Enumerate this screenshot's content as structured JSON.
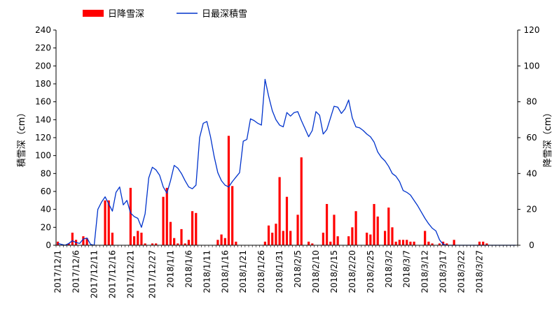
{
  "chart_data": {
    "type": "bar",
    "legend": {
      "placement": "top-left",
      "items": [
        "日降雪深",
        "日最深積雪"
      ]
    },
    "x": {
      "start": "2017-12-01",
      "end": "2018-03-31",
      "tick_labels": [
        "2017/12/1",
        "2017/12/6",
        "2017/12/11",
        "2017/12/16",
        "2017/12/21",
        "2017/12/27",
        "2018/1/1",
        "2018/1/6",
        "2018/1/11",
        "2018/1/16",
        "2018/1/21",
        "2018/1/26",
        "2018/1/31",
        "2018/2/5",
        "2018/2/10",
        "2018/2/15",
        "2018/2/20",
        "2018/2/25",
        "2018/3/2",
        "2018/3/7",
        "2018/3/12",
        "2018/3/17",
        "2018/3/22",
        "2018/3/27"
      ]
    },
    "y_left": {
      "label": "積雪深（cm）",
      "range": [
        0,
        240
      ],
      "ticks": [
        "0",
        "20",
        "40",
        "60",
        "80",
        "100",
        "120",
        "140",
        "160",
        "180",
        "200",
        "220",
        "240"
      ]
    },
    "y_right": {
      "label": "降雪深（cm）",
      "range": [
        0,
        120
      ],
      "ticks": [
        "0",
        "20",
        "40",
        "60",
        "80",
        "100",
        "120"
      ]
    },
    "grid": false,
    "series": [
      {
        "name": "日降雪深",
        "type": "bar",
        "axis": "right",
        "color": "#ff0000",
        "values": [
          2,
          0,
          0,
          1,
          7,
          3,
          0,
          5,
          4,
          0,
          0,
          0,
          0,
          25,
          25,
          7,
          0,
          0,
          0,
          0,
          32,
          5,
          8,
          7,
          1,
          0,
          1,
          1,
          0,
          27,
          32,
          13,
          4,
          1,
          9,
          1,
          3,
          19,
          18,
          0,
          0,
          0,
          0,
          0,
          3,
          6,
          4,
          61,
          33,
          2,
          0,
          0,
          0,
          0,
          0,
          0,
          0,
          2,
          11,
          7,
          12,
          38,
          8,
          27,
          8,
          0,
          17,
          49,
          0,
          2,
          1,
          0,
          0,
          7,
          23,
          2,
          17,
          5,
          0,
          0,
          5,
          10,
          19,
          0,
          0,
          7,
          6,
          23,
          16,
          0,
          8,
          21,
          10,
          2,
          3,
          3,
          3,
          2,
          2,
          0,
          0,
          8,
          2,
          1,
          0,
          1,
          2,
          1,
          0,
          3,
          0,
          0,
          0,
          0,
          0,
          0,
          2,
          2,
          1,
          0,
          0,
          0,
          0,
          0,
          0,
          0,
          0,
          0,
          0,
          0,
          0
        ]
      },
      {
        "name": "日最深積雪",
        "type": "line",
        "axis": "left",
        "color": "#0033cc",
        "values": [
          2,
          1,
          0,
          2,
          5,
          3,
          2,
          7,
          8,
          1,
          0,
          40,
          48,
          54,
          46,
          38,
          59,
          65,
          45,
          50,
          36,
          32,
          30,
          20,
          35,
          75,
          87,
          84,
          78,
          65,
          58,
          72,
          89,
          86,
          80,
          72,
          65,
          63,
          67,
          120,
          136,
          138,
          121,
          99,
          81,
          72,
          67,
          65,
          71,
          76,
          81,
          116,
          118,
          141,
          139,
          136,
          134,
          185,
          166,
          150,
          140,
          134,
          132,
          148,
          144,
          148,
          149,
          139,
          130,
          121,
          128,
          149,
          145,
          124,
          129,
          142,
          155,
          154,
          147,
          152,
          162,
          142,
          132,
          131,
          128,
          124,
          121,
          115,
          104,
          98,
          94,
          88,
          80,
          77,
          71,
          61,
          59,
          56,
          50,
          44,
          37,
          30,
          24,
          19,
          16,
          6,
          1,
          0,
          0,
          0,
          0,
          0,
          0,
          0,
          0,
          0,
          0,
          0,
          0,
          0,
          0,
          0,
          0,
          0,
          0,
          0,
          0
        ]
      }
    ]
  }
}
